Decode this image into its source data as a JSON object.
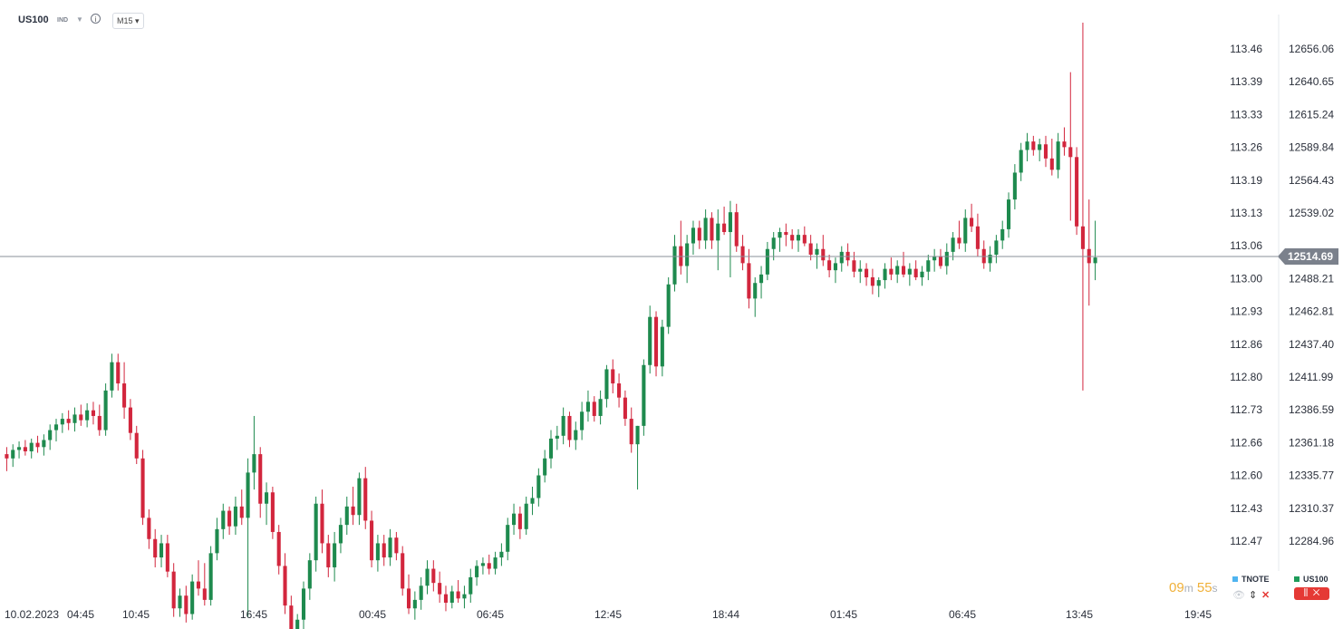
{
  "header": {
    "symbol": "US100",
    "badge": "IND",
    "timeframe": "M15"
  },
  "price_axis_left": [
    "113.46",
    "113.39",
    "113.33",
    "113.26",
    "113.19",
    "113.13",
    "113.06",
    "113.00",
    "112.93",
    "112.86",
    "112.80",
    "112.73",
    "112.66",
    "112.60",
    "112.43",
    "112.47"
  ],
  "price_axis_right": [
    "12656.06",
    "12640.65",
    "12615.24",
    "12589.84",
    "12564.43",
    "12539.02",
    "12514.69",
    "12488.21",
    "12462.81",
    "12437.40",
    "12411.99",
    "12386.59",
    "12361.18",
    "12335.77",
    "12310.37",
    "12284.96"
  ],
  "current_price": "12514.69",
  "time_axis": [
    "10.02.2023",
    "04:45",
    "10:45",
    "16:45",
    "00:45",
    "06:45",
    "12:45",
    "18:44",
    "01:45",
    "06:45",
    "13:45",
    "19:45"
  ],
  "countdown": {
    "minutes": "09",
    "m_unit": "m",
    "seconds": "55",
    "s_unit": "s"
  },
  "legend": [
    {
      "name": "TNOTE",
      "color": "#4fb4f0"
    },
    {
      "name": "US100",
      "color": "#1e9b5a"
    }
  ],
  "colors": {
    "up": "#1e8a4e",
    "down": "#d2263d",
    "price_line": "#8a8f99",
    "price_tag": "#7b818c"
  },
  "chart_data": {
    "type": "candlestick",
    "interval": "M15",
    "current": 12514.69,
    "ylim": [
      12270,
      12680
    ],
    "candles": [
      [
        12375,
        12380,
        12363,
        12372
      ],
      [
        12372,
        12382,
        12366,
        12378
      ],
      [
        12378,
        12384,
        12372,
        12380
      ],
      [
        12380,
        12385,
        12374,
        12377
      ],
      [
        12377,
        12386,
        12372,
        12383
      ],
      [
        12383,
        12388,
        12376,
        12380
      ],
      [
        12380,
        12389,
        12374,
        12385
      ],
      [
        12385,
        12396,
        12378,
        12392
      ],
      [
        12392,
        12400,
        12384,
        12396
      ],
      [
        12396,
        12404,
        12390,
        12400
      ],
      [
        12400,
        12406,
        12392,
        12397
      ],
      [
        12397,
        12408,
        12391,
        12403
      ],
      [
        12403,
        12410,
        12395,
        12399
      ],
      [
        12399,
        12411,
        12394,
        12406
      ],
      [
        12406,
        12412,
        12396,
        12402
      ],
      [
        12402,
        12410,
        12388,
        12392
      ],
      [
        12392,
        12425,
        12388,
        12420
      ],
      [
        12420,
        12446,
        12415,
        12440
      ],
      [
        12440,
        12446,
        12420,
        12425
      ],
      [
        12425,
        12440,
        12400,
        12408
      ],
      [
        12408,
        12414,
        12385,
        12390
      ],
      [
        12390,
        12395,
        12368,
        12372
      ],
      [
        12372,
        12378,
        12325,
        12330
      ],
      [
        12330,
        12336,
        12308,
        12315
      ],
      [
        12315,
        12322,
        12295,
        12302
      ],
      [
        12302,
        12318,
        12295,
        12312
      ],
      [
        12312,
        12318,
        12288,
        12292
      ],
      [
        12292,
        12298,
        12260,
        12266
      ],
      [
        12266,
        12280,
        12260,
        12275
      ],
      [
        12275,
        12282,
        12256,
        12262
      ],
      [
        12262,
        12290,
        12258,
        12285
      ],
      [
        12285,
        12300,
        12275,
        12280
      ],
      [
        12280,
        12298,
        12268,
        12272
      ],
      [
        12272,
        12310,
        12268,
        12305
      ],
      [
        12305,
        12330,
        12300,
        12322
      ],
      [
        12322,
        12340,
        12315,
        12335
      ],
      [
        12335,
        12338,
        12318,
        12324
      ],
      [
        12324,
        12345,
        12318,
        12338
      ],
      [
        12338,
        12350,
        12325,
        12330
      ],
      [
        12330,
        12372,
        12260,
        12362
      ],
      [
        12362,
        12402,
        12350,
        12375
      ],
      [
        12375,
        12380,
        12330,
        12340
      ],
      [
        12340,
        12355,
        12325,
        12348
      ],
      [
        12348,
        12352,
        12315,
        12320
      ],
      [
        12320,
        12325,
        12290,
        12296
      ],
      [
        12296,
        12305,
        12262,
        12268
      ],
      [
        12268,
        12275,
        12235,
        12242
      ],
      [
        12242,
        12262,
        12232,
        12258
      ],
      [
        12258,
        12285,
        12250,
        12280
      ],
      [
        12280,
        12305,
        12272,
        12300
      ],
      [
        12300,
        12345,
        12292,
        12340
      ],
      [
        12340,
        12350,
        12305,
        12312
      ],
      [
        12312,
        12318,
        12288,
        12295
      ],
      [
        12295,
        12320,
        12285,
        12312
      ],
      [
        12312,
        12330,
        12305,
        12325
      ],
      [
        12325,
        12345,
        12318,
        12338
      ],
      [
        12338,
        12352,
        12325,
        12332
      ],
      [
        12332,
        12362,
        12325,
        12358
      ],
      [
        12358,
        12366,
        12322,
        12328
      ],
      [
        12328,
        12335,
        12295,
        12300
      ],
      [
        12300,
        12318,
        12292,
        12312
      ],
      [
        12312,
        12318,
        12296,
        12302
      ],
      [
        12302,
        12322,
        12296,
        12316
      ],
      [
        12316,
        12320,
        12300,
        12305
      ],
      [
        12305,
        12310,
        12275,
        12280
      ],
      [
        12280,
        12290,
        12262,
        12266
      ],
      [
        12266,
        12278,
        12258,
        12272
      ],
      [
        12272,
        12288,
        12265,
        12282
      ],
      [
        12282,
        12300,
        12276,
        12294
      ],
      [
        12294,
        12300,
        12278,
        12284
      ],
      [
        12284,
        12292,
        12270,
        12276
      ],
      [
        12276,
        12282,
        12264,
        12270
      ],
      [
        12270,
        12282,
        12266,
        12278
      ],
      [
        12278,
        12286,
        12270,
        12273
      ],
      [
        12273,
        12282,
        12266,
        12276
      ],
      [
        12276,
        12294,
        12270,
        12288
      ],
      [
        12288,
        12300,
        12282,
        12296
      ],
      [
        12296,
        12302,
        12290,
        12298
      ],
      [
        12298,
        12304,
        12290,
        12294
      ],
      [
        12294,
        12306,
        12290,
        12302
      ],
      [
        12302,
        12312,
        12296,
        12306
      ],
      [
        12306,
        12330,
        12300,
        12325
      ],
      [
        12325,
        12340,
        12318,
        12333
      ],
      [
        12333,
        12338,
        12315,
        12322
      ],
      [
        12322,
        12345,
        12318,
        12340
      ],
      [
        12340,
        12352,
        12332,
        12344
      ],
      [
        12344,
        12365,
        12338,
        12360
      ],
      [
        12360,
        12378,
        12355,
        12372
      ],
      [
        12372,
        12392,
        12365,
        12386
      ],
      [
        12386,
        12395,
        12378,
        12388
      ],
      [
        12388,
        12408,
        12382,
        12402
      ],
      [
        12402,
        12405,
        12380,
        12385
      ],
      [
        12385,
        12398,
        12378,
        12392
      ],
      [
        12392,
        12412,
        12385,
        12405
      ],
      [
        12405,
        12420,
        12398,
        12412
      ],
      [
        12412,
        12416,
        12398,
        12402
      ],
      [
        12402,
        12420,
        12396,
        12414
      ],
      [
        12414,
        12438,
        12408,
        12435
      ],
      [
        12435,
        12442,
        12418,
        12425
      ],
      [
        12425,
        12432,
        12408,
        12415
      ],
      [
        12415,
        12420,
        12395,
        12400
      ],
      [
        12400,
        12408,
        12376,
        12382
      ],
      [
        12382,
        12395,
        12350,
        12395
      ],
      [
        12395,
        12442,
        12388,
        12438
      ],
      [
        12438,
        12480,
        12432,
        12472
      ],
      [
        12472,
        12476,
        12430,
        12437
      ],
      [
        12437,
        12470,
        12430,
        12465
      ],
      [
        12465,
        12500,
        12460,
        12495
      ],
      [
        12495,
        12530,
        12490,
        12522
      ],
      [
        12522,
        12540,
        12502,
        12508
      ],
      [
        12508,
        12530,
        12496,
        12524
      ],
      [
        12524,
        12540,
        12516,
        12535
      ],
      [
        12535,
        12540,
        12520,
        12526
      ],
      [
        12526,
        12548,
        12520,
        12542
      ],
      [
        12542,
        12546,
        12520,
        12526
      ],
      [
        12526,
        12548,
        12505,
        12538
      ],
      [
        12538,
        12550,
        12530,
        12532
      ],
      [
        12532,
        12554,
        12500,
        12546
      ],
      [
        12546,
        12552,
        12518,
        12522
      ],
      [
        12522,
        12530,
        12505,
        12510
      ],
      [
        12510,
        12520,
        12478,
        12485
      ],
      [
        12485,
        12500,
        12472,
        12496
      ],
      [
        12496,
        12508,
        12485,
        12502
      ],
      [
        12502,
        12525,
        12498,
        12520
      ],
      [
        12520,
        12532,
        12512,
        12528
      ],
      [
        12528,
        12535,
        12518,
        12532
      ],
      [
        12532,
        12538,
        12522,
        12530
      ],
      [
        12530,
        12534,
        12520,
        12526
      ],
      [
        12526,
        12534,
        12518,
        12530
      ],
      [
        12530,
        12536,
        12522,
        12524
      ],
      [
        12524,
        12530,
        12512,
        12516
      ],
      [
        12516,
        12524,
        12506,
        12520
      ],
      [
        12520,
        12530,
        12508,
        12512
      ],
      [
        12512,
        12516,
        12500,
        12505
      ],
      [
        12505,
        12514,
        12496,
        12510
      ],
      [
        12510,
        12522,
        12504,
        12518
      ],
      [
        12518,
        12524,
        12508,
        12512
      ],
      [
        12512,
        12518,
        12500,
        12504
      ],
      [
        12504,
        12512,
        12496,
        12506
      ],
      [
        12506,
        12510,
        12494,
        12500
      ],
      [
        12500,
        12506,
        12488,
        12494
      ],
      [
        12494,
        12500,
        12486,
        12498
      ],
      [
        12498,
        12510,
        12492,
        12506
      ],
      [
        12506,
        12514,
        12498,
        12502
      ],
      [
        12502,
        12512,
        12496,
        12508
      ],
      [
        12508,
        12518,
        12500,
        12502
      ],
      [
        12502,
        12510,
        12494,
        12506
      ],
      [
        12506,
        12512,
        12498,
        12500
      ],
      [
        12500,
        12508,
        12494,
        12504
      ],
      [
        12504,
        12516,
        12498,
        12512
      ],
      [
        12512,
        12520,
        12504,
        12515
      ],
      [
        12515,
        12520,
        12506,
        12508
      ],
      [
        12508,
        12524,
        12502,
        12518
      ],
      [
        12518,
        12532,
        12512,
        12528
      ],
      [
        12528,
        12540,
        12520,
        12524
      ],
      [
        12524,
        12548,
        12518,
        12542
      ],
      [
        12542,
        12552,
        12532,
        12536
      ],
      [
        12536,
        12545,
        12515,
        12520
      ],
      [
        12520,
        12526,
        12506,
        12510
      ],
      [
        12510,
        12522,
        12504,
        12516
      ],
      [
        12516,
        12530,
        12510,
        12526
      ],
      [
        12526,
        12540,
        12520,
        12534
      ],
      [
        12534,
        12560,
        12528,
        12555
      ],
      [
        12555,
        12580,
        12548,
        12574
      ],
      [
        12574,
        12595,
        12568,
        12590
      ],
      [
        12590,
        12602,
        12582,
        12596
      ],
      [
        12596,
        12600,
        12586,
        12590
      ],
      [
        12590,
        12598,
        12582,
        12594
      ],
      [
        12594,
        12600,
        12578,
        12584
      ],
      [
        12584,
        12598,
        12572,
        12576
      ],
      [
        12576,
        12602,
        12570,
        12596
      ],
      [
        12596,
        12606,
        12586,
        12592
      ],
      [
        12592,
        12645,
        12540,
        12585
      ],
      [
        12585,
        12592,
        12530,
        12536
      ],
      [
        12536,
        12680,
        12420,
        12520
      ],
      [
        12520,
        12555,
        12480,
        12510
      ],
      [
        12510,
        12540,
        12498,
        12514
      ]
    ]
  }
}
